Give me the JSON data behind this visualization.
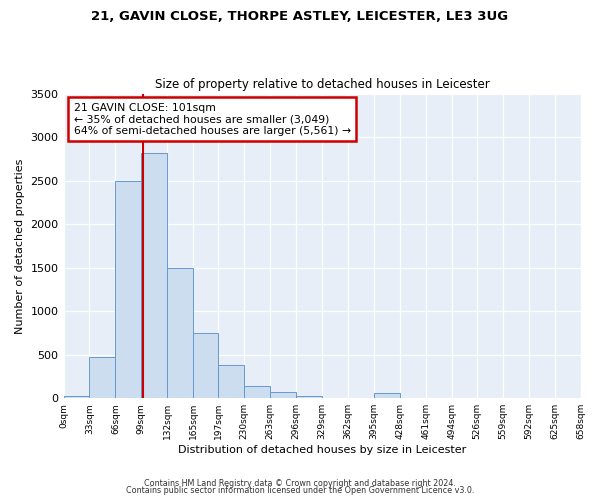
{
  "title_line1": "21, GAVIN CLOSE, THORPE ASTLEY, LEICESTER, LE3 3UG",
  "title_line2": "Size of property relative to detached houses in Leicester",
  "xlabel": "Distribution of detached houses by size in Leicester",
  "ylabel": "Number of detached properties",
  "bar_color": "#ccddf0",
  "bar_edge_color": "#6699cc",
  "bin_edges": [
    0,
    33,
    66,
    99,
    132,
    165,
    197,
    230,
    263,
    296,
    329,
    362,
    395,
    428,
    461,
    494,
    526,
    559,
    592,
    625,
    658
  ],
  "bar_heights": [
    25,
    470,
    2500,
    2820,
    1500,
    750,
    385,
    145,
    75,
    25,
    0,
    0,
    60,
    0,
    0,
    0,
    0,
    0,
    0,
    0
  ],
  "tick_labels": [
    "0sqm",
    "33sqm",
    "66sqm",
    "99sqm",
    "132sqm",
    "165sqm",
    "197sqm",
    "230sqm",
    "263sqm",
    "296sqm",
    "329sqm",
    "362sqm",
    "395sqm",
    "428sqm",
    "461sqm",
    "494sqm",
    "526sqm",
    "559sqm",
    "592sqm",
    "625sqm",
    "658sqm"
  ],
  "ylim": [
    0,
    3500
  ],
  "yticks": [
    0,
    500,
    1000,
    1500,
    2000,
    2500,
    3000,
    3500
  ],
  "vline_x": 101,
  "vline_color": "#cc0000",
  "annotation_title": "21 GAVIN CLOSE: 101sqm",
  "annotation_line1": "← 35% of detached houses are smaller (3,049)",
  "annotation_line2": "64% of semi-detached houses are larger (5,561) →",
  "annotation_box_edgecolor": "#cc0000",
  "footnote1": "Contains HM Land Registry data © Crown copyright and database right 2024.",
  "footnote2": "Contains public sector information licensed under the Open Government Licence v3.0.",
  "bg_color": "#ffffff",
  "plot_bg_color": "#e8eef8"
}
